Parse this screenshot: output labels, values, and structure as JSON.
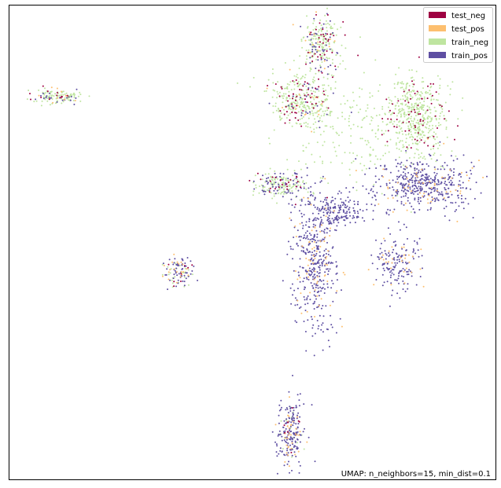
{
  "chart_data": {
    "type": "scatter",
    "title": "",
    "xlabel": "",
    "ylabel": "",
    "xlim": [
      0,
      100
    ],
    "ylim": [
      0,
      100
    ],
    "grid": false,
    "axis_ticks": false,
    "legend_position": "top-right",
    "annotation": "UMAP: n_neighbors=15, min_dist=0.1",
    "series": [
      {
        "name": "test_neg",
        "color": "#9e0142",
        "clusters": [
          {
            "cx": 64.2,
            "cy": 91.5,
            "sx": 1.9,
            "sy": 3.2,
            "n": 40
          },
          {
            "cx": 59.7,
            "cy": 79.8,
            "sx": 3.2,
            "sy": 2.6,
            "n": 55
          },
          {
            "cx": 83.5,
            "cy": 76.4,
            "sx": 3.1,
            "sy": 4.4,
            "n": 70
          },
          {
            "cx": 55.8,
            "cy": 62.2,
            "sx": 2.8,
            "sy": 1.5,
            "n": 25
          },
          {
            "cx": 9.6,
            "cy": 80.8,
            "sx": 2.4,
            "sy": 0.8,
            "n": 12
          },
          {
            "cx": 34.8,
            "cy": 44.1,
            "sx": 1.4,
            "sy": 1.6,
            "n": 8
          },
          {
            "cx": 57.8,
            "cy": 9.8,
            "sx": 1.5,
            "sy": 3.2,
            "n": 8
          }
        ]
      },
      {
        "name": "test_pos",
        "color": "#fdbf6f",
        "clusters": [
          {
            "cx": 64.2,
            "cy": 91.5,
            "sx": 1.9,
            "sy": 3.2,
            "n": 15
          },
          {
            "cx": 59.7,
            "cy": 79.8,
            "sx": 3.2,
            "sy": 2.6,
            "n": 15
          },
          {
            "cx": 85.3,
            "cy": 62.3,
            "sx": 5.2,
            "sy": 3.0,
            "n": 60
          },
          {
            "cx": 62.8,
            "cy": 46.5,
            "sx": 2.2,
            "sy": 7.6,
            "n": 70
          },
          {
            "cx": 79.9,
            "cy": 45.5,
            "sx": 2.5,
            "sy": 2.9,
            "n": 30
          },
          {
            "cx": 34.8,
            "cy": 44.1,
            "sx": 1.4,
            "sy": 1.6,
            "n": 20
          },
          {
            "cx": 57.8,
            "cy": 9.8,
            "sx": 1.5,
            "sy": 3.2,
            "n": 35
          },
          {
            "cx": 9.6,
            "cy": 80.8,
            "sx": 2.4,
            "sy": 0.8,
            "n": 10
          }
        ]
      },
      {
        "name": "train_neg",
        "color": "#bfe5a0",
        "clusters": [
          {
            "cx": 64.2,
            "cy": 91.5,
            "sx": 1.9,
            "sy": 3.2,
            "n": 160
          },
          {
            "cx": 59.7,
            "cy": 79.8,
            "sx": 3.2,
            "sy": 2.6,
            "n": 240
          },
          {
            "cx": 83.5,
            "cy": 76.4,
            "sx": 3.1,
            "sy": 4.4,
            "n": 450
          },
          {
            "cx": 70.5,
            "cy": 75.0,
            "sx": 6.0,
            "sy": 6.5,
            "n": 180
          },
          {
            "cx": 55.8,
            "cy": 62.2,
            "sx": 2.8,
            "sy": 1.5,
            "n": 130
          },
          {
            "cx": 9.6,
            "cy": 80.8,
            "sx": 2.4,
            "sy": 0.8,
            "n": 90
          },
          {
            "cx": 34.8,
            "cy": 44.1,
            "sx": 1.4,
            "sy": 1.6,
            "n": 25
          },
          {
            "cx": 57.8,
            "cy": 9.8,
            "sx": 1.5,
            "sy": 3.2,
            "n": 15
          }
        ]
      },
      {
        "name": "train_pos",
        "color": "#5e4fa2",
        "clusters": [
          {
            "cx": 64.2,
            "cy": 91.5,
            "sx": 1.9,
            "sy": 3.2,
            "n": 45
          },
          {
            "cx": 59.7,
            "cy": 79.8,
            "sx": 3.2,
            "sy": 2.6,
            "n": 25
          },
          {
            "cx": 85.3,
            "cy": 62.3,
            "sx": 5.2,
            "sy": 3.0,
            "n": 420
          },
          {
            "cx": 62.8,
            "cy": 46.5,
            "sx": 2.2,
            "sy": 7.6,
            "n": 380
          },
          {
            "cx": 67.8,
            "cy": 56.4,
            "sx": 3.2,
            "sy": 1.5,
            "n": 160
          },
          {
            "cx": 79.9,
            "cy": 45.5,
            "sx": 2.5,
            "sy": 2.9,
            "n": 140
          },
          {
            "cx": 55.8,
            "cy": 62.2,
            "sx": 2.8,
            "sy": 1.5,
            "n": 60
          },
          {
            "cx": 34.8,
            "cy": 44.1,
            "sx": 1.4,
            "sy": 1.6,
            "n": 60
          },
          {
            "cx": 57.8,
            "cy": 9.8,
            "sx": 1.5,
            "sy": 3.2,
            "n": 170
          },
          {
            "cx": 9.6,
            "cy": 80.8,
            "sx": 2.4,
            "sy": 0.8,
            "n": 20
          }
        ]
      }
    ]
  }
}
